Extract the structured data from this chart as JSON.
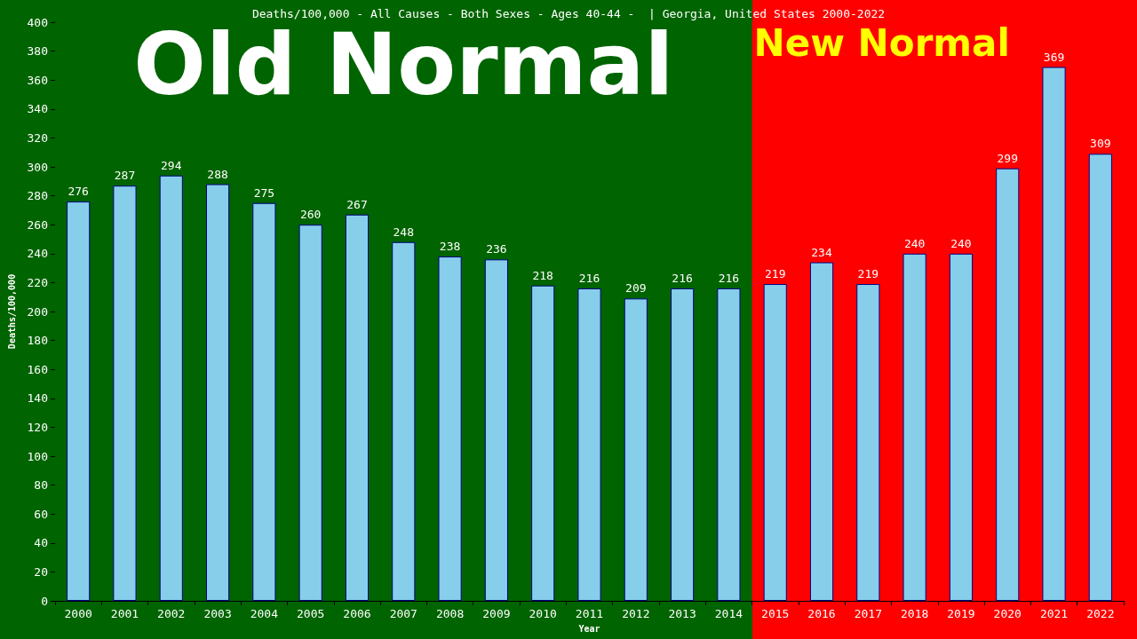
{
  "chart_data": {
    "type": "bar",
    "title": "Deaths/100,000 - All Causes - Both Sexes - Ages 40-44 -  | Georgia, United States 2000-2022",
    "xlabel": "Year",
    "ylabel": "Deaths/100,000",
    "categories": [
      "2000",
      "2001",
      "2002",
      "2003",
      "2004",
      "2005",
      "2006",
      "2007",
      "2008",
      "2009",
      "2010",
      "2011",
      "2012",
      "2013",
      "2014",
      "2015",
      "2016",
      "2017",
      "2018",
      "2019",
      "2020",
      "2021",
      "2022"
    ],
    "values": [
      276,
      287,
      294,
      288,
      275,
      260,
      267,
      248,
      238,
      236,
      218,
      216,
      209,
      216,
      216,
      219,
      234,
      219,
      240,
      240,
      299,
      369,
      309
    ],
    "color": "#87ceeb",
    "data_labels": true,
    "grid": false,
    "ylim": [
      0,
      400
    ],
    "yticks": [
      0,
      20,
      40,
      60,
      80,
      100,
      120,
      140,
      160,
      180,
      200,
      220,
      240,
      260,
      280,
      300,
      320,
      340,
      360,
      380,
      400
    ],
    "bands": [
      {
        "axis": "x",
        "from": "2000",
        "to": "2014",
        "label": "Old Normal",
        "color": "#006400"
      },
      {
        "axis": "x",
        "from": "2015",
        "to": "2022",
        "label": "New Normal",
        "color": "#ff0000"
      }
    ]
  }
}
